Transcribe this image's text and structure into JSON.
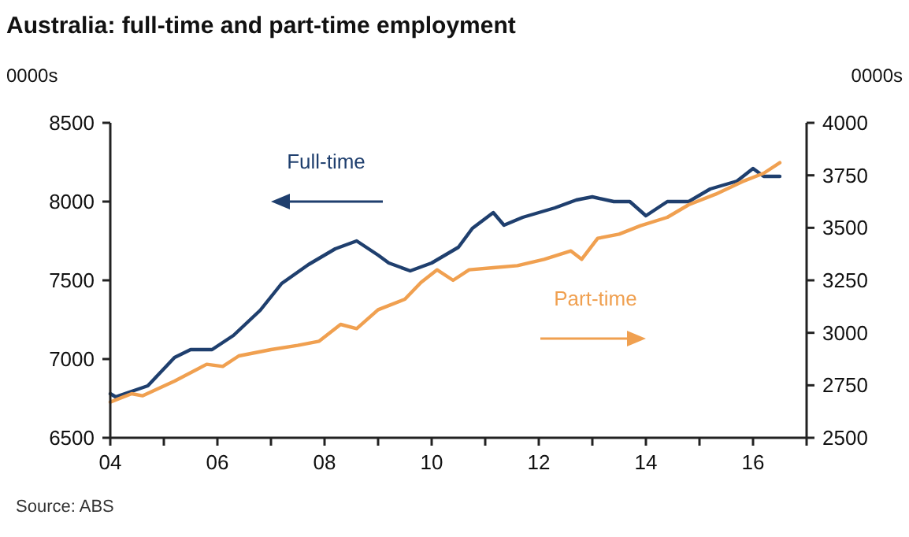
{
  "chart_data": {
    "type": "line",
    "title": "Australia: full-time and part-time employment",
    "ylabel": "0000s",
    "y2label": "0000s",
    "annotations": [
      "Source: ABS"
    ],
    "xlim": [
      2004,
      2017
    ],
    "xticks": [
      {
        "value": 2004,
        "label": "04"
      },
      {
        "value": 2005,
        "label": null
      },
      {
        "value": 2006,
        "label": "06"
      },
      {
        "value": 2007,
        "label": null
      },
      {
        "value": 2008,
        "label": "08"
      },
      {
        "value": 2009,
        "label": null
      },
      {
        "value": 2010,
        "label": "10"
      },
      {
        "value": 2011,
        "label": null
      },
      {
        "value": 2012,
        "label": "12"
      },
      {
        "value": 2013,
        "label": null
      },
      {
        "value": 2014,
        "label": "14"
      },
      {
        "value": 2015,
        "label": null
      },
      {
        "value": 2016,
        "label": "16"
      },
      {
        "value": 2017,
        "label": null
      }
    ],
    "ylim": [
      6500,
      8500
    ],
    "yticks": [
      6500,
      7000,
      7500,
      8000,
      8500
    ],
    "y2lim": [
      2500,
      4000
    ],
    "y2ticks": [
      2500,
      2750,
      3000,
      3250,
      3500,
      3750,
      4000
    ],
    "grid": false,
    "series": [
      {
        "name": "Full-time",
        "color": "#1f3f6e",
        "x": [
          2004.0,
          2004.1,
          2004.7,
          2005.2,
          2005.5,
          2005.9,
          2006.3,
          2006.8,
          2007.2,
          2007.7,
          2008.2,
          2008.6,
          2009.0,
          2009.2,
          2009.6,
          2010.0,
          2010.5,
          2010.76,
          2011.15,
          2011.35,
          2011.7,
          2012.3,
          2012.7,
          2013.0,
          2013.4,
          2013.7,
          2014.0,
          2014.4,
          2014.8,
          2015.2,
          2015.7,
          2016.0,
          2016.2,
          2016.5
        ],
        "values": [
          6780,
          6760,
          6830,
          7010,
          7060,
          7060,
          7150,
          7310,
          7480,
          7600,
          7700,
          7750,
          7660,
          7610,
          7560,
          7610,
          7710,
          7830,
          7930,
          7850,
          7900,
          7960,
          8010,
          8030,
          8000,
          8000,
          7910,
          8000,
          8000,
          8080,
          8130,
          8210,
          8160,
          8160
        ]
      },
      {
        "name": "Part-time",
        "color": "#f0a050",
        "axis": "y2",
        "x": [
          2004.0,
          2004.4,
          2004.6,
          2005.2,
          2005.8,
          2006.1,
          2006.4,
          2007.0,
          2007.5,
          2007.9,
          2008.3,
          2008.6,
          2009.0,
          2009.5,
          2009.8,
          2010.1,
          2010.4,
          2010.7,
          2011.15,
          2011.6,
          2012.1,
          2012.6,
          2012.8,
          2013.1,
          2013.5,
          2013.9,
          2014.4,
          2014.8,
          2015.3,
          2015.8,
          2016.2,
          2016.5
        ],
        "values": [
          2670,
          2710,
          2700,
          2770,
          2850,
          2840,
          2890,
          2920,
          2940,
          2960,
          3040,
          3020,
          3110,
          3160,
          3240,
          3300,
          3250,
          3300,
          3310,
          3320,
          3350,
          3390,
          3350,
          3450,
          3470,
          3510,
          3550,
          3610,
          3660,
          3720,
          3760,
          3810
        ]
      }
    ]
  }
}
